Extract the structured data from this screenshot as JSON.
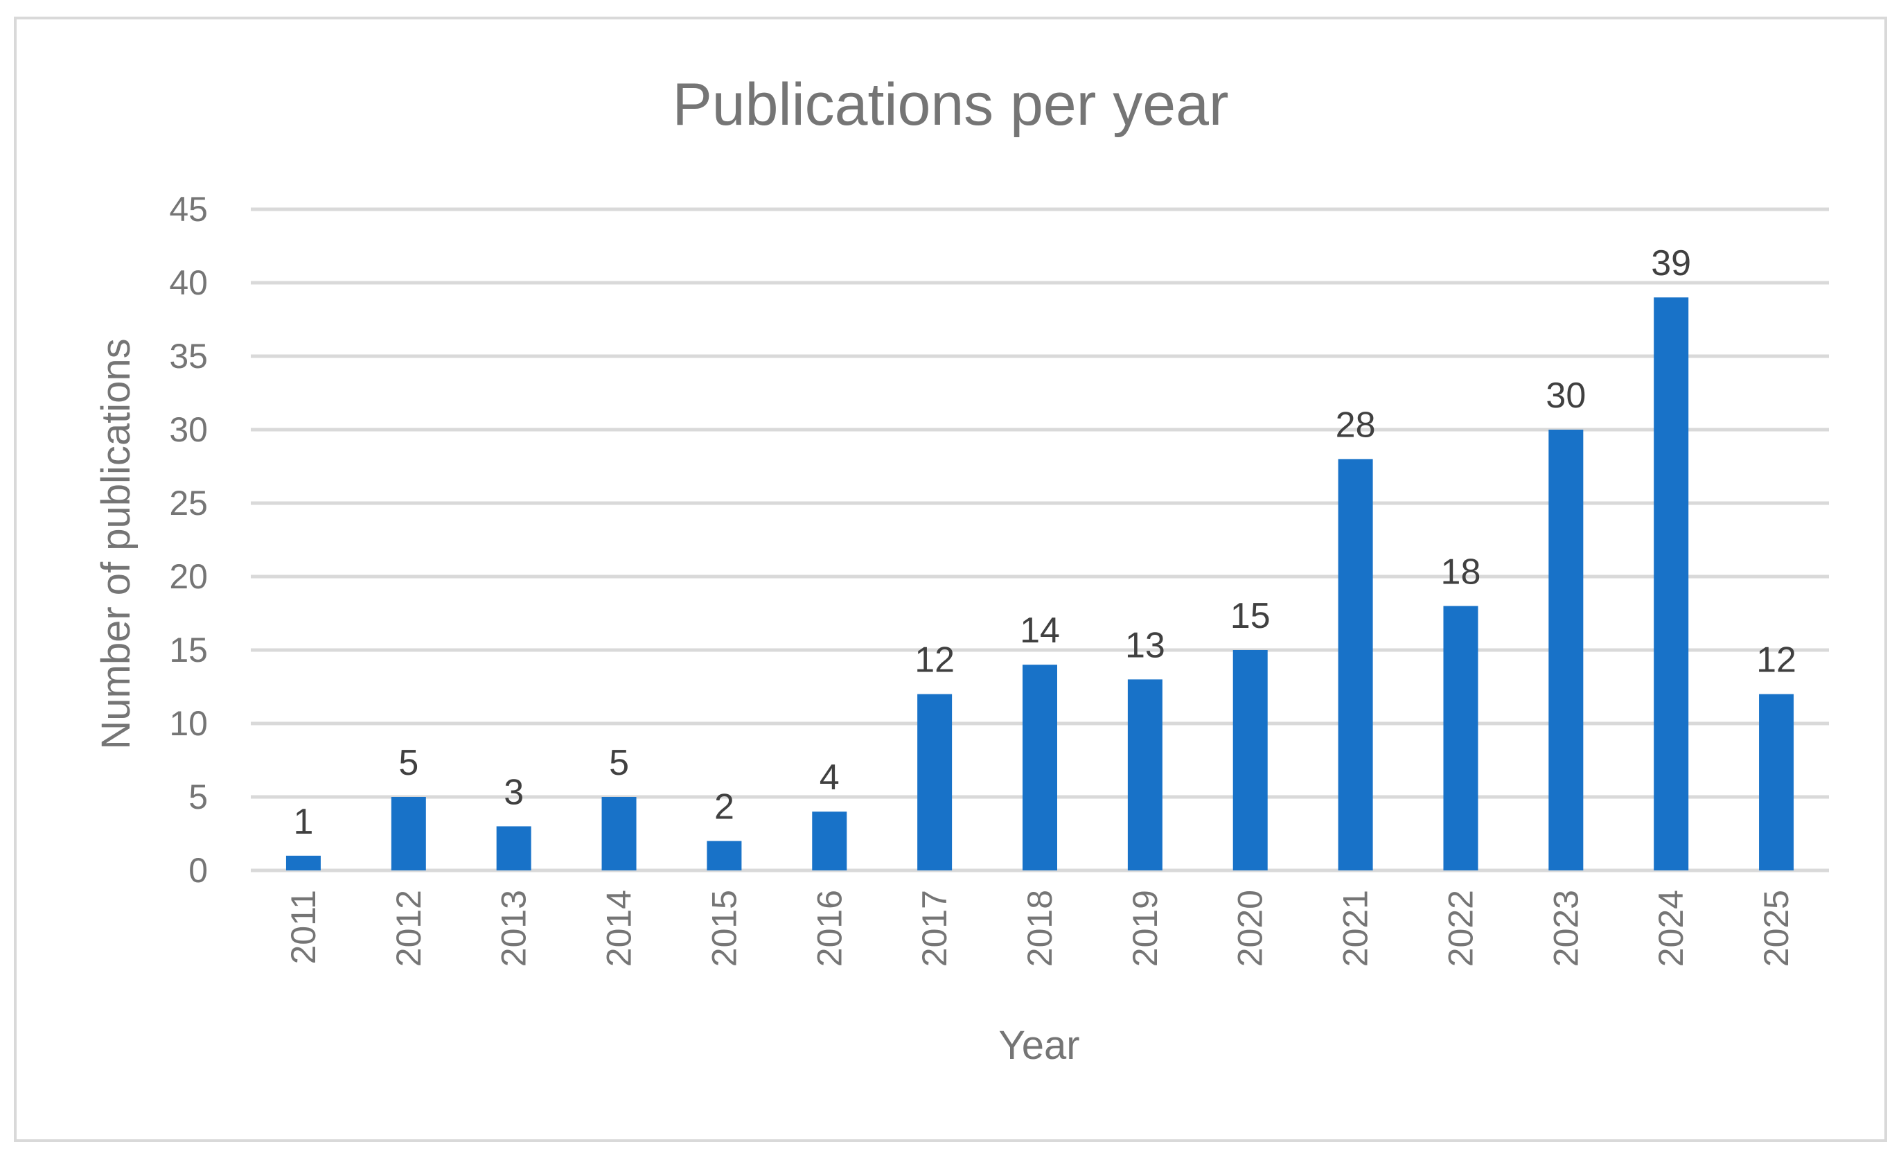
{
  "chart_data": {
    "type": "bar",
    "title": "Publications per year",
    "xlabel": "Year",
    "ylabel": "Number of publications",
    "categories": [
      "2011",
      "2012",
      "2013",
      "2014",
      "2015",
      "2016",
      "2017",
      "2018",
      "2019",
      "2020",
      "2021",
      "2022",
      "2023",
      "2024",
      "2025"
    ],
    "values": [
      1,
      5,
      3,
      5,
      2,
      4,
      12,
      14,
      13,
      15,
      28,
      18,
      30,
      39,
      12
    ],
    "ylim": [
      0,
      45
    ],
    "yticks": [
      0,
      5,
      10,
      15,
      20,
      25,
      30,
      35,
      40,
      45
    ],
    "grid": true,
    "legend": "none",
    "bar_color": "#1872C8",
    "data_labels": true
  }
}
